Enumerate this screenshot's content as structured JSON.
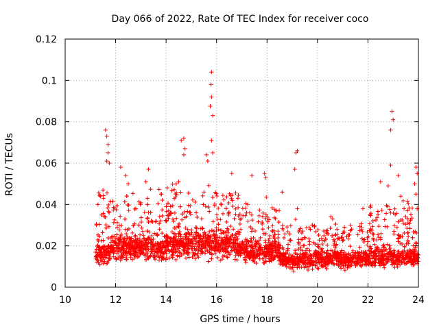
{
  "chart_data": {
    "type": "scatter",
    "title": "Day 066 of 2022, Rate Of TEC Index for receiver coco",
    "xlabel": "GPS time / hours",
    "ylabel": "ROTI / TECUs",
    "xlim": [
      10,
      24
    ],
    "ylim": [
      0,
      0.12
    ],
    "xticks": [
      10,
      12,
      14,
      16,
      18,
      20,
      22,
      24
    ],
    "xtick_labels": [
      "10",
      "12",
      "14",
      "16",
      "18",
      "20",
      "22",
      "24"
    ],
    "yticks": [
      0,
      0.02,
      0.04,
      0.06,
      0.08,
      0.1,
      0.12
    ],
    "ytick_labels": [
      "0",
      "0.02",
      "0.04",
      "0.06",
      "0.08",
      "0.1",
      "0.12"
    ],
    "grid": true,
    "marker": "+",
    "color": "#ff0000",
    "data_start_hour": 11.2,
    "data_end_hour": 24.0,
    "series": [
      {
        "name": "ROTI",
        "sampled_points": [
          [
            11.6,
            0.076
          ],
          [
            11.65,
            0.073
          ],
          [
            11.7,
            0.069
          ],
          [
            11.7,
            0.065
          ],
          [
            11.65,
            0.061
          ],
          [
            11.75,
            0.06
          ],
          [
            11.3,
            0.04
          ],
          [
            11.4,
            0.044
          ],
          [
            11.5,
            0.047
          ],
          [
            12.2,
            0.058
          ],
          [
            12.4,
            0.054
          ],
          [
            12.5,
            0.05
          ],
          [
            13.2,
            0.051
          ],
          [
            13.3,
            0.057
          ],
          [
            13.8,
            0.045
          ],
          [
            14.4,
            0.05
          ],
          [
            14.5,
            0.051
          ],
          [
            14.6,
            0.071
          ],
          [
            14.7,
            0.072
          ],
          [
            14.75,
            0.067
          ],
          [
            14.7,
            0.064
          ],
          [
            15.5,
            0.046
          ],
          [
            15.6,
            0.064
          ],
          [
            15.65,
            0.061
          ],
          [
            15.75,
            0.0875
          ],
          [
            15.8,
            0.092
          ],
          [
            15.78,
            0.098
          ],
          [
            15.8,
            0.104
          ],
          [
            15.85,
            0.083
          ],
          [
            15.8,
            0.071
          ],
          [
            15.85,
            0.065
          ],
          [
            16.6,
            0.055
          ],
          [
            17.4,
            0.054
          ],
          [
            17.9,
            0.055
          ],
          [
            17.95,
            0.053
          ],
          [
            18.6,
            0.046
          ],
          [
            19.2,
            0.066
          ],
          [
            19.15,
            0.065
          ],
          [
            19.1,
            0.057
          ],
          [
            19.2,
            0.038
          ],
          [
            19.8,
            0.03
          ],
          [
            20.6,
            0.033
          ],
          [
            21.8,
            0.038
          ],
          [
            22.5,
            0.051
          ],
          [
            22.8,
            0.049
          ],
          [
            22.95,
            0.085
          ],
          [
            23.0,
            0.081
          ],
          [
            22.9,
            0.076
          ],
          [
            22.9,
            0.059
          ],
          [
            23.2,
            0.054
          ],
          [
            23.3,
            0.044
          ],
          [
            23.9,
            0.058
          ],
          [
            23.95,
            0.055
          ],
          [
            23.85,
            0.05
          ],
          [
            23.9,
            0.045
          ],
          [
            23.95,
            0.038
          ]
        ]
      }
    ]
  }
}
